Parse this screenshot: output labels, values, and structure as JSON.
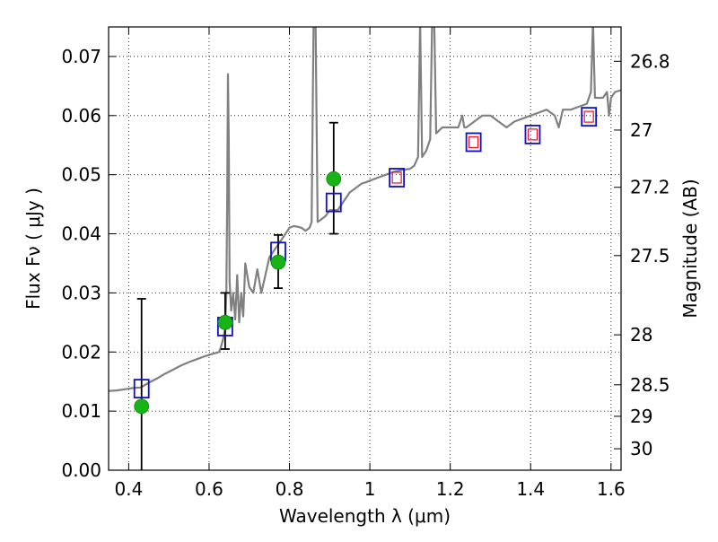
{
  "chart_data": {
    "type": "scatter",
    "xlabel": "Wavelength  λ (μm)",
    "ylabel": "Flux  Fν  ( μJy )",
    "ylabel_right": "Magnitude (AB)",
    "xlim": [
      0.35,
      1.625
    ],
    "ylim": [
      0.0,
      0.075
    ],
    "grid": true,
    "grid_style": "dotted",
    "x_ticks": [
      {
        "value": 0.4,
        "label": "0.4"
      },
      {
        "value": 0.6,
        "label": "0.6"
      },
      {
        "value": 0.8,
        "label": "0.8"
      },
      {
        "value": 1.0,
        "label": "1"
      },
      {
        "value": 1.2,
        "label": "1.2"
      },
      {
        "value": 1.4,
        "label": "1.4"
      },
      {
        "value": 1.6,
        "label": "1.6"
      }
    ],
    "y_ticks": [
      {
        "value": 0.0,
        "label": "0.00"
      },
      {
        "value": 0.01,
        "label": "0.01"
      },
      {
        "value": 0.02,
        "label": "0.02"
      },
      {
        "value": 0.03,
        "label": "0.03"
      },
      {
        "value": 0.04,
        "label": "0.04"
      },
      {
        "value": 0.05,
        "label": "0.05"
      },
      {
        "value": 0.06,
        "label": "0.06"
      },
      {
        "value": 0.07,
        "label": "0.07"
      }
    ],
    "right_ticks": [
      {
        "magnitude": 26.8,
        "label": "26.8"
      },
      {
        "magnitude": 27.0,
        "label": "27"
      },
      {
        "magnitude": 27.2,
        "label": "27.2"
      },
      {
        "magnitude": 27.5,
        "label": "27.5"
      },
      {
        "magnitude": 28.0,
        "label": "28"
      },
      {
        "magnitude": 28.5,
        "label": "28.5"
      },
      {
        "magnitude": 29.0,
        "label": "29"
      },
      {
        "magnitude": 30.0,
        "label": "30"
      }
    ],
    "colors": {
      "spectrum": "#808080",
      "observed": "#17b317",
      "model_box": "#1010c8",
      "model_inner": "#e8102a",
      "errorbar": "#000000"
    },
    "spectrum": [
      [
        0.35,
        0.0134
      ],
      [
        0.37,
        0.0135
      ],
      [
        0.39,
        0.0137
      ],
      [
        0.41,
        0.0139
      ],
      [
        0.43,
        0.014
      ],
      [
        0.45,
        0.0148
      ],
      [
        0.47,
        0.0155
      ],
      [
        0.49,
        0.0163
      ],
      [
        0.51,
        0.017
      ],
      [
        0.53,
        0.0177
      ],
      [
        0.55,
        0.0183
      ],
      [
        0.57,
        0.0188
      ],
      [
        0.59,
        0.0193
      ],
      [
        0.61,
        0.0197
      ],
      [
        0.625,
        0.02
      ],
      [
        0.63,
        0.021
      ],
      [
        0.635,
        0.0222
      ],
      [
        0.64,
        0.024
      ],
      [
        0.643,
        0.03
      ],
      [
        0.645,
        0.045
      ],
      [
        0.647,
        0.067
      ],
      [
        0.649,
        0.056
      ],
      [
        0.651,
        0.032
      ],
      [
        0.655,
        0.027
      ],
      [
        0.66,
        0.03
      ],
      [
        0.665,
        0.0255
      ],
      [
        0.67,
        0.033
      ],
      [
        0.675,
        0.025
      ],
      [
        0.68,
        0.03
      ],
      [
        0.685,
        0.026
      ],
      [
        0.69,
        0.035
      ],
      [
        0.7,
        0.031
      ],
      [
        0.71,
        0.03
      ],
      [
        0.72,
        0.034
      ],
      [
        0.73,
        0.03
      ],
      [
        0.74,
        0.033
      ],
      [
        0.75,
        0.036
      ],
      [
        0.76,
        0.037
      ],
      [
        0.77,
        0.038
      ],
      [
        0.78,
        0.039
      ],
      [
        0.79,
        0.04
      ],
      [
        0.8,
        0.041
      ],
      [
        0.81,
        0.0413
      ],
      [
        0.82,
        0.0412
      ],
      [
        0.83,
        0.041
      ],
      [
        0.84,
        0.0405
      ],
      [
        0.85,
        0.041
      ],
      [
        0.855,
        0.042
      ],
      [
        0.86,
        0.076
      ],
      [
        0.865,
        0.076
      ],
      [
        0.87,
        0.042
      ],
      [
        0.88,
        0.0425
      ],
      [
        0.89,
        0.043
      ],
      [
        0.9,
        0.044
      ],
      [
        0.91,
        0.044
      ],
      [
        0.92,
        0.044
      ],
      [
        0.93,
        0.045
      ],
      [
        0.94,
        0.046
      ],
      [
        0.95,
        0.047
      ],
      [
        0.96,
        0.0475
      ],
      [
        0.97,
        0.048
      ],
      [
        0.98,
        0.0485
      ],
      [
        0.99,
        0.0487
      ],
      [
        1.0,
        0.049
      ],
      [
        1.02,
        0.0495
      ],
      [
        1.04,
        0.05
      ],
      [
        1.06,
        0.0505
      ],
      [
        1.08,
        0.0508
      ],
      [
        1.1,
        0.051
      ],
      [
        1.11,
        0.0515
      ],
      [
        1.12,
        0.053
      ],
      [
        1.125,
        0.076
      ],
      [
        1.13,
        0.053
      ],
      [
        1.14,
        0.054
      ],
      [
        1.15,
        0.056
      ],
      [
        1.155,
        0.076
      ],
      [
        1.16,
        0.076
      ],
      [
        1.165,
        0.057
      ],
      [
        1.18,
        0.058
      ],
      [
        1.2,
        0.058
      ],
      [
        1.22,
        0.058
      ],
      [
        1.23,
        0.06
      ],
      [
        1.235,
        0.058
      ],
      [
        1.24,
        0.058
      ],
      [
        1.26,
        0.059
      ],
      [
        1.28,
        0.06
      ],
      [
        1.3,
        0.06
      ],
      [
        1.32,
        0.059
      ],
      [
        1.34,
        0.058
      ],
      [
        1.36,
        0.059
      ],
      [
        1.38,
        0.0595
      ],
      [
        1.4,
        0.06
      ],
      [
        1.42,
        0.0605
      ],
      [
        1.44,
        0.061
      ],
      [
        1.46,
        0.06
      ],
      [
        1.47,
        0.058
      ],
      [
        1.48,
        0.061
      ],
      [
        1.5,
        0.061
      ],
      [
        1.52,
        0.0615
      ],
      [
        1.54,
        0.062
      ],
      [
        1.55,
        0.064
      ],
      [
        1.555,
        0.076
      ],
      [
        1.56,
        0.063
      ],
      [
        1.58,
        0.063
      ],
      [
        1.59,
        0.064
      ],
      [
        1.595,
        0.06
      ],
      [
        1.6,
        0.063
      ],
      [
        1.61,
        0.064
      ],
      [
        1.625,
        0.0643
      ]
    ],
    "observed": [
      {
        "x": 0.432,
        "y": 0.0108,
        "err_low": 0.0,
        "err_high": 0.029
      },
      {
        "x": 0.64,
        "y": 0.025,
        "err_low": 0.0205,
        "err_high": 0.03
      },
      {
        "x": 0.772,
        "y": 0.0352,
        "err_low": 0.0308,
        "err_high": 0.0398
      },
      {
        "x": 0.91,
        "y": 0.0493,
        "err_low": 0.04,
        "err_high": 0.0588
      }
    ],
    "model": [
      {
        "x": 0.432,
        "y": 0.0138,
        "inner": false
      },
      {
        "x": 0.64,
        "y": 0.0243,
        "inner": false
      },
      {
        "x": 0.772,
        "y": 0.037,
        "inner": false
      },
      {
        "x": 0.91,
        "y": 0.0453,
        "inner": false
      },
      {
        "x": 1.067,
        "y": 0.0495,
        "inner": true
      },
      {
        "x": 1.258,
        "y": 0.0555,
        "inner": true
      },
      {
        "x": 1.405,
        "y": 0.0568,
        "inner": true
      },
      {
        "x": 1.545,
        "y": 0.0598,
        "inner": true
      }
    ]
  }
}
